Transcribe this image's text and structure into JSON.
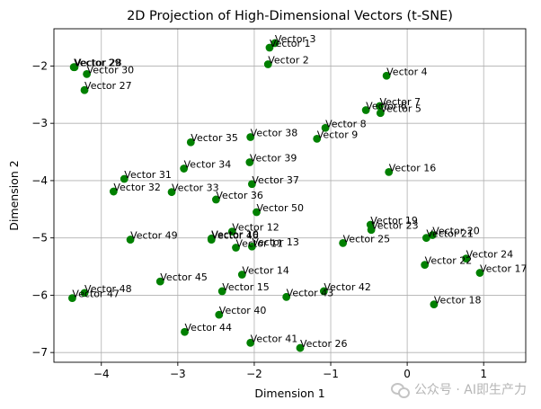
{
  "chart_data": {
    "type": "scatter",
    "title": "2D Projection of High-Dimensional Vectors (t-SNE)",
    "xlabel": "Dimension 1",
    "ylabel": "Dimension 2",
    "xlim": [
      -4.62,
      1.55
    ],
    "ylim": [
      -7.17,
      -1.35
    ],
    "xticks": [
      -4,
      -3,
      -2,
      -1,
      0,
      1
    ],
    "yticks": [
      -7,
      -6,
      -5,
      -4,
      -3,
      -2
    ],
    "grid": true,
    "marker_color": "#008000",
    "points": [
      {
        "label": "Vector 1",
        "x": -1.8,
        "y": -1.68
      },
      {
        "label": "Vector 2",
        "x": -1.82,
        "y": -1.97
      },
      {
        "label": "Vector 3",
        "x": -1.73,
        "y": -1.6
      },
      {
        "label": "Vector 4",
        "x": -0.27,
        "y": -2.17
      },
      {
        "label": "Vector 5",
        "x": -0.35,
        "y": -2.82
      },
      {
        "label": "Vector 6",
        "x": -0.54,
        "y": -2.77
      },
      {
        "label": "Vector 7",
        "x": -0.36,
        "y": -2.7
      },
      {
        "label": "Vector 8",
        "x": -1.07,
        "y": -3.08
      },
      {
        "label": "Vector 9",
        "x": -1.18,
        "y": -3.27
      },
      {
        "label": "Vector 10",
        "x": -2.56,
        "y": -5.01
      },
      {
        "label": "Vector 11",
        "x": -2.24,
        "y": -5.17
      },
      {
        "label": "Vector 12",
        "x": -2.29,
        "y": -4.89
      },
      {
        "label": "Vector 13",
        "x": -2.03,
        "y": -5.15
      },
      {
        "label": "Vector 14",
        "x": -2.16,
        "y": -5.64
      },
      {
        "label": "Vector 15",
        "x": -2.42,
        "y": -5.93
      },
      {
        "label": "Vector 16",
        "x": -0.24,
        "y": -3.85
      },
      {
        "label": "Vector 17",
        "x": 0.95,
        "y": -5.61
      },
      {
        "label": "Vector 18",
        "x": 0.35,
        "y": -6.16
      },
      {
        "label": "Vector 19",
        "x": -0.48,
        "y": -4.77
      },
      {
        "label": "Vector 20",
        "x": 0.33,
        "y": -4.95
      },
      {
        "label": "Vector 21",
        "x": 0.25,
        "y": -5.0
      },
      {
        "label": "Vector 22",
        "x": 0.23,
        "y": -5.47
      },
      {
        "label": "Vector 23",
        "x": -0.47,
        "y": -4.86
      },
      {
        "label": "Vector 24",
        "x": 0.77,
        "y": -5.36
      },
      {
        "label": "Vector 25",
        "x": -0.84,
        "y": -5.09
      },
      {
        "label": "Vector 26",
        "x": -1.4,
        "y": -6.92
      },
      {
        "label": "Vector 27",
        "x": -4.22,
        "y": -2.42
      },
      {
        "label": "Vector 28",
        "x": -4.35,
        "y": -2.02
      },
      {
        "label": "Vector 29",
        "x": -4.36,
        "y": -2.02
      },
      {
        "label": "Vector 30",
        "x": -4.19,
        "y": -2.14
      },
      {
        "label": "Vector 31",
        "x": -3.7,
        "y": -3.97
      },
      {
        "label": "Vector 32",
        "x": -3.84,
        "y": -4.19
      },
      {
        "label": "Vector 33",
        "x": -3.08,
        "y": -4.2
      },
      {
        "label": "Vector 34",
        "x": -2.92,
        "y": -3.79
      },
      {
        "label": "Vector 35",
        "x": -2.83,
        "y": -3.33
      },
      {
        "label": "Vector 36",
        "x": -2.5,
        "y": -4.33
      },
      {
        "label": "Vector 37",
        "x": -2.03,
        "y": -4.06
      },
      {
        "label": "Vector 38",
        "x": -2.05,
        "y": -3.24
      },
      {
        "label": "Vector 39",
        "x": -2.06,
        "y": -3.68
      },
      {
        "label": "Vector 40",
        "x": -2.46,
        "y": -6.34
      },
      {
        "label": "Vector 41",
        "x": -2.05,
        "y": -6.83
      },
      {
        "label": "Vector 42",
        "x": -1.09,
        "y": -5.93
      },
      {
        "label": "Vector 43",
        "x": -1.58,
        "y": -6.03
      },
      {
        "label": "Vector 44",
        "x": -2.91,
        "y": -6.64
      },
      {
        "label": "Vector 45",
        "x": -3.23,
        "y": -5.76
      },
      {
        "label": "Vector 46",
        "x": -2.56,
        "y": -5.03
      },
      {
        "label": "Vector 47",
        "x": -4.38,
        "y": -6.05
      },
      {
        "label": "Vector 48",
        "x": -4.22,
        "y": -5.96
      },
      {
        "label": "Vector 49",
        "x": -3.62,
        "y": -5.03
      },
      {
        "label": "Vector 50",
        "x": -1.97,
        "y": -4.55
      }
    ]
  },
  "watermark": {
    "text": "公众号 · AI即生产力"
  }
}
